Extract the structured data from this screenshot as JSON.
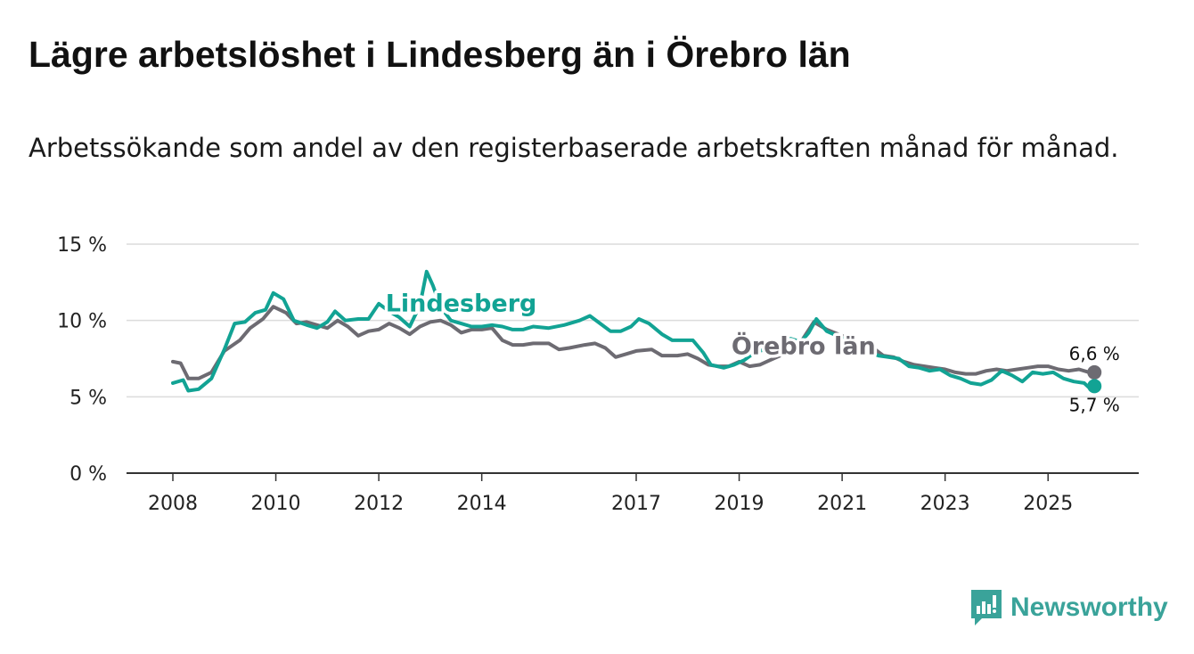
{
  "header": {
    "title": "Lägre arbetslöshet i Lindesberg än i Örebro län",
    "subtitle": "Arbetssökande som andel av den registerbaserade arbetskraften månad för månad."
  },
  "brand": {
    "name": "Newsworthy",
    "color": "#3aa39a",
    "icon": "newsworthy-chart-icon"
  },
  "chart_data": {
    "type": "line",
    "title": "Lägre arbetslöshet i Lindesberg än i Örebro län",
    "subtitle": "Arbetssökande som andel av den registerbaserade arbetskraften månad för månad.",
    "xlabel": "",
    "ylabel": "",
    "xlim": [
      2008,
      2026
    ],
    "ylim": [
      0,
      15
    ],
    "grid": true,
    "x_ticks": [
      2008,
      2010,
      2012,
      2014,
      2017,
      2019,
      2021,
      2023,
      2025
    ],
    "x_tick_labels": [
      "2008",
      "2010",
      "2012",
      "2014",
      "2017",
      "2019",
      "2021",
      "2023",
      "2025"
    ],
    "y_ticks": [
      0,
      5,
      10,
      15
    ],
    "y_tick_labels": [
      "0 %",
      "5 %",
      "10 %",
      "15 %"
    ],
    "series": [
      {
        "name": "Örebro län",
        "color": "#6d6b72",
        "end_label": "6,6 %",
        "points": [
          [
            2008.0,
            7.3
          ],
          [
            2008.15,
            7.2
          ],
          [
            2008.3,
            6.2
          ],
          [
            2008.5,
            6.2
          ],
          [
            2008.75,
            6.6
          ],
          [
            2009.0,
            8.0
          ],
          [
            2009.3,
            8.7
          ],
          [
            2009.5,
            9.5
          ],
          [
            2009.75,
            10.1
          ],
          [
            2009.95,
            10.9
          ],
          [
            2010.2,
            10.5
          ],
          [
            2010.4,
            9.8
          ],
          [
            2010.6,
            9.9
          ],
          [
            2010.8,
            9.7
          ],
          [
            2011.0,
            9.5
          ],
          [
            2011.2,
            10.0
          ],
          [
            2011.4,
            9.6
          ],
          [
            2011.6,
            9.0
          ],
          [
            2011.8,
            9.3
          ],
          [
            2012.0,
            9.4
          ],
          [
            2012.2,
            9.8
          ],
          [
            2012.4,
            9.5
          ],
          [
            2012.6,
            9.1
          ],
          [
            2012.8,
            9.6
          ],
          [
            2013.0,
            9.9
          ],
          [
            2013.2,
            10.0
          ],
          [
            2013.4,
            9.7
          ],
          [
            2013.6,
            9.2
          ],
          [
            2013.8,
            9.4
          ],
          [
            2014.0,
            9.4
          ],
          [
            2014.2,
            9.5
          ],
          [
            2014.4,
            8.7
          ],
          [
            2014.6,
            8.4
          ],
          [
            2014.8,
            8.4
          ],
          [
            2015.0,
            8.5
          ],
          [
            2015.3,
            8.5
          ],
          [
            2015.5,
            8.1
          ],
          [
            2015.7,
            8.2
          ],
          [
            2016.0,
            8.4
          ],
          [
            2016.2,
            8.5
          ],
          [
            2016.4,
            8.2
          ],
          [
            2016.6,
            7.6
          ],
          [
            2016.8,
            7.8
          ],
          [
            2017.0,
            8.0
          ],
          [
            2017.3,
            8.1
          ],
          [
            2017.5,
            7.7
          ],
          [
            2017.8,
            7.7
          ],
          [
            2018.0,
            7.8
          ],
          [
            2018.2,
            7.5
          ],
          [
            2018.4,
            7.1
          ],
          [
            2018.6,
            7.0
          ],
          [
            2018.8,
            7.0
          ],
          [
            2019.0,
            7.3
          ],
          [
            2019.2,
            7.0
          ],
          [
            2019.4,
            7.1
          ],
          [
            2019.6,
            7.4
          ],
          [
            2019.8,
            7.7
          ],
          [
            2020.0,
            7.9
          ],
          [
            2020.2,
            8.6
          ],
          [
            2020.45,
            9.9
          ],
          [
            2020.7,
            9.4
          ],
          [
            2021.0,
            9.0
          ],
          [
            2021.2,
            8.6
          ],
          [
            2021.4,
            8.4
          ],
          [
            2021.6,
            8.2
          ],
          [
            2021.8,
            7.7
          ],
          [
            2022.0,
            7.6
          ],
          [
            2022.2,
            7.3
          ],
          [
            2022.4,
            7.1
          ],
          [
            2022.6,
            7.0
          ],
          [
            2022.8,
            6.9
          ],
          [
            2023.0,
            6.8
          ],
          [
            2023.2,
            6.6
          ],
          [
            2023.4,
            6.5
          ],
          [
            2023.6,
            6.5
          ],
          [
            2023.8,
            6.7
          ],
          [
            2024.0,
            6.8
          ],
          [
            2024.2,
            6.7
          ],
          [
            2024.4,
            6.8
          ],
          [
            2024.6,
            6.9
          ],
          [
            2024.8,
            7.0
          ],
          [
            2025.0,
            7.0
          ],
          [
            2025.2,
            6.8
          ],
          [
            2025.4,
            6.7
          ],
          [
            2025.6,
            6.8
          ],
          [
            2025.8,
            6.6
          ],
          [
            2025.9,
            6.6
          ]
        ]
      },
      {
        "name": "Lindesberg",
        "color": "#12a394",
        "end_label": "5,7 %",
        "points": [
          [
            2008.0,
            5.9
          ],
          [
            2008.2,
            6.1
          ],
          [
            2008.3,
            5.4
          ],
          [
            2008.5,
            5.5
          ],
          [
            2008.75,
            6.2
          ],
          [
            2009.0,
            8.1
          ],
          [
            2009.2,
            9.8
          ],
          [
            2009.4,
            9.9
          ],
          [
            2009.6,
            10.5
          ],
          [
            2009.8,
            10.7
          ],
          [
            2009.95,
            11.8
          ],
          [
            2010.15,
            11.4
          ],
          [
            2010.35,
            10.0
          ],
          [
            2010.6,
            9.7
          ],
          [
            2010.8,
            9.5
          ],
          [
            2011.0,
            9.9
          ],
          [
            2011.15,
            10.6
          ],
          [
            2011.35,
            10.0
          ],
          [
            2011.6,
            10.1
          ],
          [
            2011.8,
            10.1
          ],
          [
            2012.0,
            11.1
          ],
          [
            2012.2,
            10.6
          ],
          [
            2012.4,
            10.2
          ],
          [
            2012.6,
            9.6
          ],
          [
            2012.8,
            11.0
          ],
          [
            2012.93,
            13.2
          ],
          [
            2013.05,
            12.3
          ],
          [
            2013.2,
            10.9
          ],
          [
            2013.4,
            10.0
          ],
          [
            2013.6,
            9.8
          ],
          [
            2013.8,
            9.6
          ],
          [
            2014.0,
            9.6
          ],
          [
            2014.2,
            9.7
          ],
          [
            2014.4,
            9.6
          ],
          [
            2014.6,
            9.4
          ],
          [
            2014.8,
            9.4
          ],
          [
            2015.0,
            9.6
          ],
          [
            2015.3,
            9.5
          ],
          [
            2015.6,
            9.7
          ],
          [
            2015.9,
            10.0
          ],
          [
            2016.1,
            10.3
          ],
          [
            2016.3,
            9.8
          ],
          [
            2016.5,
            9.3
          ],
          [
            2016.7,
            9.3
          ],
          [
            2016.9,
            9.6
          ],
          [
            2017.05,
            10.1
          ],
          [
            2017.25,
            9.8
          ],
          [
            2017.5,
            9.1
          ],
          [
            2017.7,
            8.7
          ],
          [
            2017.9,
            8.7
          ],
          [
            2018.1,
            8.7
          ],
          [
            2018.3,
            7.9
          ],
          [
            2018.45,
            7.1
          ],
          [
            2018.7,
            6.9
          ],
          [
            2018.9,
            7.1
          ],
          [
            2019.1,
            7.4
          ],
          [
            2019.3,
            7.9
          ],
          [
            2019.6,
            8.2
          ],
          [
            2019.8,
            8.5
          ],
          [
            2020.0,
            8.8
          ],
          [
            2020.2,
            8.6
          ],
          [
            2020.35,
            9.2
          ],
          [
            2020.5,
            10.1
          ],
          [
            2020.7,
            9.3
          ],
          [
            2020.9,
            9.0
          ],
          [
            2021.1,
            8.7
          ],
          [
            2021.3,
            8.3
          ],
          [
            2021.5,
            8.0
          ],
          [
            2021.7,
            7.7
          ],
          [
            2021.9,
            7.6
          ],
          [
            2022.1,
            7.5
          ],
          [
            2022.3,
            7.0
          ],
          [
            2022.5,
            6.9
          ],
          [
            2022.7,
            6.7
          ],
          [
            2022.9,
            6.8
          ],
          [
            2023.1,
            6.4
          ],
          [
            2023.3,
            6.2
          ],
          [
            2023.5,
            5.9
          ],
          [
            2023.7,
            5.8
          ],
          [
            2023.9,
            6.1
          ],
          [
            2024.1,
            6.7
          ],
          [
            2024.3,
            6.4
          ],
          [
            2024.5,
            6.0
          ],
          [
            2024.7,
            6.6
          ],
          [
            2024.9,
            6.5
          ],
          [
            2025.1,
            6.6
          ],
          [
            2025.3,
            6.2
          ],
          [
            2025.5,
            6.0
          ],
          [
            2025.7,
            5.9
          ],
          [
            2025.8,
            5.6
          ],
          [
            2025.9,
            5.7
          ]
        ]
      }
    ],
    "annotations": [
      {
        "text": "Lindesberg",
        "series": "Lindesberg",
        "at_x": 2013.6,
        "at_y": 10.6
      },
      {
        "text": "Örebro län",
        "series": "Örebro län",
        "at_x": 2020.25,
        "at_y": 7.8
      }
    ]
  }
}
